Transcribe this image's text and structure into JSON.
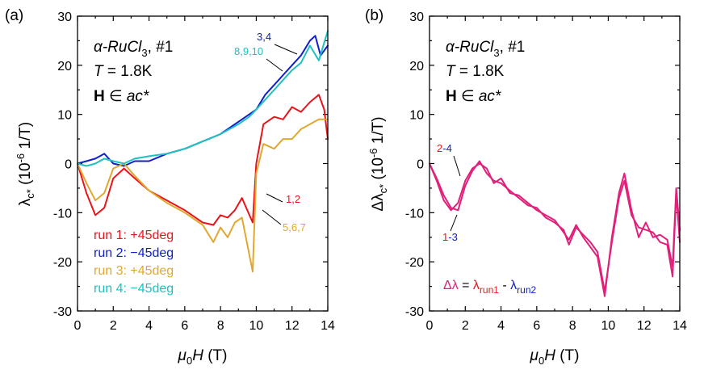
{
  "chart_data": [
    {
      "type": "line",
      "panel_label": "(a)",
      "xlabel": "μ0H (T)",
      "ylabel": "λc* (10-6 1/T)",
      "xlim": [
        0,
        14
      ],
      "ylim": [
        -30,
        30
      ],
      "xticks": [
        0,
        2,
        4,
        6,
        8,
        10,
        12,
        14
      ],
      "yticks": [
        -30,
        -20,
        -10,
        0,
        10,
        20,
        30
      ],
      "annotations": {
        "material_prefix": "α-RuCl",
        "material_sub": "3",
        "material_suffix": ", #1",
        "temperature_label": "T",
        "temperature_value": " = 1.8K",
        "field_bold": "H",
        "field_rest": " ∈ ",
        "field_plane": "ac*",
        "label_34": "3,4",
        "label_8910": "8,9,10",
        "label_12": "1,2",
        "label_567": "5,6,7"
      },
      "series": [
        {
          "name": "run 1: +45deg",
          "color": "#e8141c",
          "x": [
            0,
            0.5,
            1.0,
            1.5,
            2.0,
            2.6,
            3.2,
            4.0,
            5.0,
            6.0,
            7.0,
            7.6,
            8.0,
            8.4,
            8.8,
            9.2,
            9.8,
            10.0,
            10.4,
            11.0,
            11.5,
            12.0,
            12.5,
            13.0,
            13.5,
            13.8,
            14.0
          ],
          "y": [
            0,
            -6,
            -10.5,
            -9,
            -3,
            -1,
            -3,
            -5.5,
            -7.5,
            -9.5,
            -12,
            -12.5,
            -10.5,
            -11,
            -9.5,
            -7,
            -12,
            0,
            8,
            9.5,
            9,
            11.5,
            10.5,
            12.5,
            14,
            11,
            5
          ]
        },
        {
          "name": "run 2: −45deg",
          "color": "#1020c8",
          "x": [
            0,
            0.5,
            1.0,
            1.5,
            2.0,
            2.6,
            3.2,
            4.0,
            5.0,
            6.0,
            7.0,
            8.0,
            9.0,
            9.6,
            10.0,
            10.5,
            11.0,
            11.5,
            12.0,
            12.5,
            13.0,
            13.3,
            13.6,
            14.0
          ],
          "y": [
            0,
            0.5,
            1,
            2,
            0,
            -0.5,
            0.5,
            0.5,
            2,
            3,
            4.5,
            6,
            8.5,
            10,
            11,
            14,
            16,
            18,
            20,
            22,
            25,
            26,
            22,
            24
          ]
        },
        {
          "name": "run 3: +45deg",
          "color": "#e0a830",
          "x": [
            0,
            0.5,
            1.0,
            1.5,
            2.0,
            2.6,
            3.2,
            4.0,
            5.0,
            6.0,
            7.0,
            7.6,
            8.0,
            8.4,
            8.8,
            9.2,
            9.8,
            10.0,
            10.4,
            11.0,
            11.5,
            12.0,
            12.5,
            13.0,
            13.5,
            14.0
          ],
          "y": [
            0,
            -4,
            -7.5,
            -6,
            -1,
            0,
            -2.5,
            -5.5,
            -8,
            -10,
            -12.5,
            -16,
            -13,
            -15,
            -12,
            -11,
            -22,
            -2,
            4,
            3,
            5,
            5,
            7,
            8,
            9,
            9
          ]
        },
        {
          "name": "run 4: −45deg",
          "color": "#20c0c0",
          "x": [
            0,
            0.5,
            1.0,
            1.5,
            2.0,
            2.6,
            3.2,
            4.0,
            5.0,
            6.0,
            7.0,
            8.0,
            9.0,
            9.6,
            10.0,
            10.5,
            11.0,
            11.5,
            12.0,
            12.5,
            13.0,
            13.5,
            14.0
          ],
          "y": [
            0,
            -0.5,
            0,
            1,
            0.5,
            0,
            1,
            1.5,
            2,
            3,
            4.5,
            6,
            8,
            9.5,
            11,
            13,
            15,
            17,
            19,
            20.5,
            24,
            21,
            27
          ]
        }
      ]
    },
    {
      "type": "line",
      "panel_label": "(b)",
      "xlabel": "μ0H (T)",
      "ylabel": "Δλc* (10-6 1/T)",
      "xlim": [
        0,
        14
      ],
      "ylim": [
        -30,
        30
      ],
      "xticks": [
        0,
        2,
        4,
        6,
        8,
        10,
        12,
        14
      ],
      "yticks": [
        -30,
        -20,
        -10,
        0,
        10,
        20,
        30
      ],
      "annotations": {
        "material_prefix": "α-RuCl",
        "material_sub": "3",
        "material_suffix": ", #1",
        "temperature_label": "T",
        "temperature_value": " = 1.8K",
        "field_bold": "H",
        "field_rest": " ∈ ",
        "field_plane": "ac*",
        "label_24_a": "2",
        "label_24_b": "-4",
        "label_13_a": "1",
        "label_13_b": "-3",
        "formula_lhs": "Δλ",
        "formula_eq": " = ",
        "formula_t1": "λ",
        "formula_t1_sub": "run1",
        "formula_minus": " - ",
        "formula_t2": "λ",
        "formula_t2_sub": "run2"
      },
      "series": [
        {
          "name": "2-4",
          "color": "#e0207a",
          "x": [
            0,
            0.4,
            0.8,
            1.2,
            1.6,
            2.0,
            2.4,
            2.8,
            3.2,
            3.6,
            4.0,
            4.5,
            5.0,
            5.5,
            6.0,
            6.5,
            7.0,
            7.5,
            7.8,
            8.2,
            8.6,
            9.0,
            9.4,
            9.8,
            10.2,
            10.6,
            10.9,
            11.3,
            11.7,
            12.1,
            12.5,
            12.9,
            13.3,
            13.6,
            13.8,
            14.0
          ],
          "y": [
            0,
            -3.5,
            -7.5,
            -9.5,
            -8,
            -3.5,
            -1,
            0,
            -1,
            -4,
            -3,
            -6,
            -6.5,
            -8,
            -9.5,
            -10.5,
            -11.5,
            -14,
            -15.5,
            -12.5,
            -15,
            -17,
            -19,
            -27,
            -15,
            -6,
            -2,
            -9.5,
            -15,
            -12,
            -15,
            -14.5,
            -15.5,
            -21,
            -5,
            -13.5
          ]
        },
        {
          "name": "1-3",
          "color": "#e0207a",
          "x": [
            0,
            0.4,
            0.8,
            1.2,
            1.6,
            2.0,
            2.4,
            2.8,
            3.2,
            3.6,
            4.0,
            4.5,
            5.0,
            5.5,
            6.0,
            6.5,
            7.0,
            7.5,
            7.8,
            8.2,
            8.6,
            9.0,
            9.4,
            9.8,
            10.2,
            10.6,
            10.9,
            11.3,
            11.7,
            12.1,
            12.5,
            12.9,
            13.3,
            13.6,
            13.8,
            14.0
          ],
          "y": [
            0,
            -3,
            -6.5,
            -9,
            -9.5,
            -4.5,
            -1.5,
            0.5,
            -2,
            -3.5,
            -4,
            -5.5,
            -7,
            -8.5,
            -9,
            -11,
            -12,
            -13.5,
            -16.5,
            -13,
            -14.5,
            -16,
            -18,
            -26,
            -16,
            -7,
            -3.5,
            -10.5,
            -13,
            -13.5,
            -14,
            -16,
            -16.5,
            -23,
            -6,
            -16
          ]
        }
      ]
    }
  ]
}
